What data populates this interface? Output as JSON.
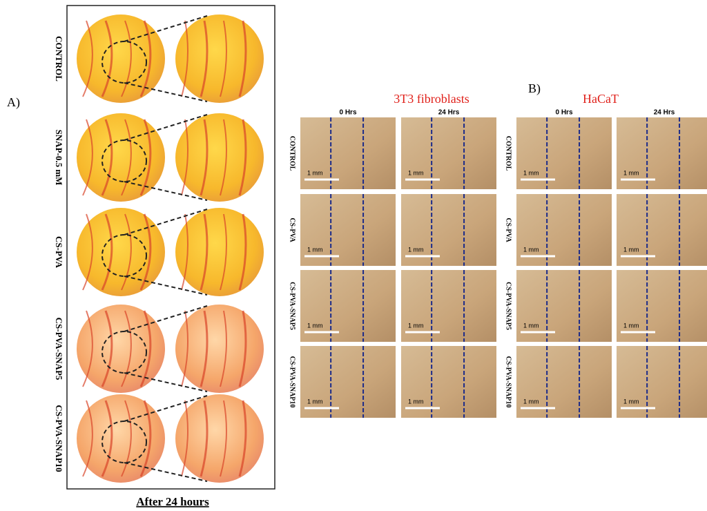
{
  "panel_a": {
    "label": "A)",
    "rows": [
      "CONTROL",
      "SNAP-0.5 mM",
      "CS-PVA",
      "CS-PVA-SNAP5",
      "CS-PVA-SNAP10"
    ],
    "caption": "After 24 hours"
  },
  "panel_b": {
    "label": "B)",
    "groups": [
      {
        "title": "3T3 fibroblasts",
        "columns": [
          "0 Hrs",
          "24 Hrs"
        ]
      },
      {
        "title": "HaCaT",
        "columns": [
          "0 Hrs",
          "24 Hrs"
        ]
      }
    ],
    "rows": [
      "CONTROL",
      "CS-PVA",
      "CS-PVA-SNAP5",
      "CS-PVA-SNAP10"
    ],
    "scale_bar": "1 mm"
  }
}
